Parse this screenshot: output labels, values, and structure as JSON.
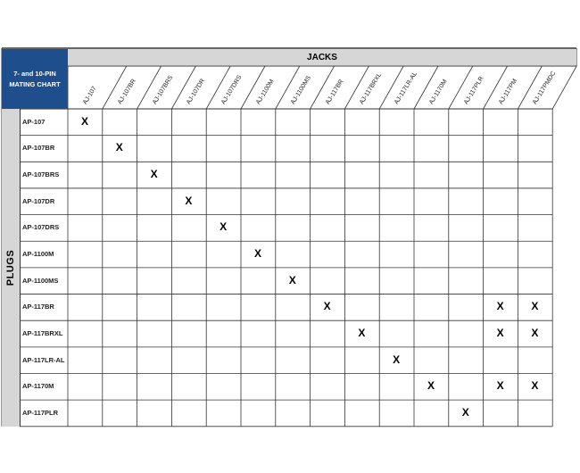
{
  "title": "7- and 10-PIN\nMATING CHART",
  "jacks_label": "JACKS",
  "plugs_label": "PLUGS",
  "mark_symbol": "X",
  "jacks": [
    "AJ-107",
    "AJ-107BR",
    "AJ-107BRS",
    "AJ-107DR",
    "AJ-107DRS",
    "AJ-1100M",
    "AJ-1100MS",
    "AJ-117BR",
    "AJ-117BRXL",
    "AJ-117LR-AL",
    "AJ-1170M",
    "AJ-117PLR",
    "AJ-117PM",
    "AJ-117PMDC"
  ],
  "plugs": [
    {
      "name": "AP-107",
      "mates": [
        "AJ-107"
      ]
    },
    {
      "name": "AP-107BR",
      "mates": [
        "AJ-107BR"
      ]
    },
    {
      "name": "AP-107BRS",
      "mates": [
        "AJ-107BRS"
      ]
    },
    {
      "name": "AP-107DR",
      "mates": [
        "AJ-107DR"
      ]
    },
    {
      "name": "AP-107DRS",
      "mates": [
        "AJ-107DRS"
      ]
    },
    {
      "name": "AP-1100M",
      "mates": [
        "AJ-1100M"
      ]
    },
    {
      "name": "AP-1100MS",
      "mates": [
        "AJ-1100MS"
      ]
    },
    {
      "name": "AP-117BR",
      "mates": [
        "AJ-117BR",
        "AJ-117PM",
        "AJ-117PMDC"
      ]
    },
    {
      "name": "AP-117BRXL",
      "mates": [
        "AJ-117BRXL",
        "AJ-117PM",
        "AJ-117PMDC"
      ]
    },
    {
      "name": "AP-117LR-AL",
      "mates": [
        "AJ-117LR-AL"
      ]
    },
    {
      "name": "AP-1170M",
      "mates": [
        "AJ-1170M",
        "AJ-117PM",
        "AJ-117PMDC"
      ]
    },
    {
      "name": "AP-117PLR",
      "mates": [
        "AJ-117PLR"
      ]
    }
  ],
  "colors": {
    "header_blue": "#1f4e8c",
    "header_gray": "#d6d6d6",
    "grid": "#333333"
  }
}
